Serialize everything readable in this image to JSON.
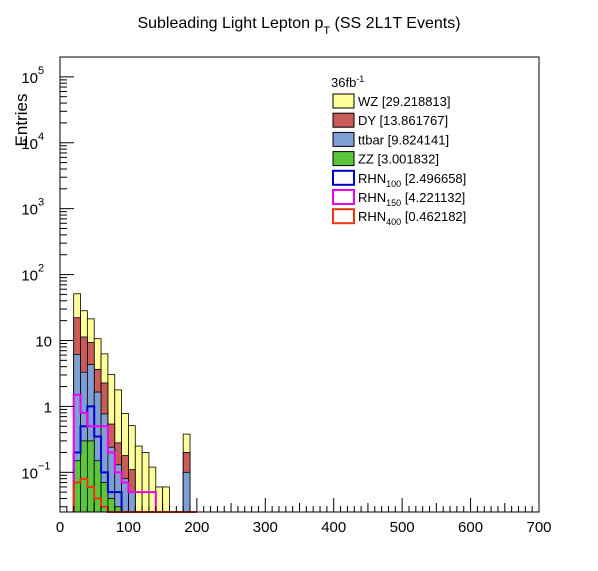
{
  "chart_data": {
    "type": "histogram-stack",
    "title": "Subleading Light Lepton p",
    "title_subscript": "T",
    "title_suffix": " (SS 2L1T Events)",
    "ylabel": "Entries",
    "xlabel": "",
    "xlim": [
      0,
      700
    ],
    "ylim": [
      0.025,
      200000
    ],
    "yscale": "log",
    "x_ticks": [
      0,
      100,
      200,
      300,
      400,
      500,
      600,
      700
    ],
    "x_tick_labels": [
      "0",
      "100",
      "200",
      "300",
      "400",
      "500",
      "600",
      "700"
    ],
    "y_tick_labels": [
      {
        "value": 0.1,
        "base": "10",
        "exp": "−1"
      },
      {
        "value": 1,
        "base": "1",
        "exp": ""
      },
      {
        "value": 10,
        "base": "10",
        "exp": ""
      },
      {
        "value": 100,
        "base": "10",
        "exp": "2"
      },
      {
        "value": 1000,
        "base": "10",
        "exp": "3"
      },
      {
        "value": 10000,
        "base": "10",
        "exp": "4"
      },
      {
        "value": 100000,
        "base": "10",
        "exp": "5"
      }
    ],
    "luminosity_label": "36fb",
    "luminosity_exp": "-1",
    "legend_position": "top-right",
    "bin_edges": [
      20,
      30,
      40,
      50,
      60,
      70,
      80,
      90,
      100,
      110,
      120,
      130,
      140,
      150,
      160,
      170,
      180,
      190,
      200
    ],
    "stacked_series": [
      {
        "name": "ZZ",
        "label_main": "ZZ",
        "label_sub": "",
        "label_value": " [3.001832]",
        "color": "#5cc63a",
        "values": [
          0.15,
          0.3,
          0.3,
          0.15,
          0.07,
          0.04,
          0.03,
          0,
          0,
          0,
          0,
          0,
          0,
          0,
          0,
          0,
          0,
          0
        ]
      },
      {
        "name": "ttbar",
        "label_main": "ttbar",
        "label_sub": "",
        "label_value": " [9.824141]",
        "color": "#7f9fd4",
        "values": [
          6,
          3,
          4,
          1.5,
          0.7,
          0.2,
          0.1,
          0.08,
          0.05,
          0,
          0,
          0,
          0,
          0,
          0,
          0,
          0.1,
          0
        ]
      },
      {
        "name": "DY",
        "label_main": "DY",
        "label_sub": "",
        "label_value": " [13.861767]",
        "color": "#c95b5b",
        "values": [
          16,
          8,
          5,
          2,
          1.5,
          0.3,
          0.15,
          0.1,
          0.06,
          0,
          0,
          0,
          0,
          0,
          0,
          0,
          0.1,
          0
        ]
      },
      {
        "name": "WZ",
        "label_main": "WZ",
        "label_sub": "",
        "label_value": " [29.218813]",
        "color": "#ffff99",
        "values": [
          29,
          17,
          12,
          7,
          4,
          2.5,
          1.5,
          0.6,
          0.4,
          0.25,
          0.2,
          0.12,
          0.06,
          0.06,
          0,
          0,
          0.18,
          0
        ]
      }
    ],
    "line_series": [
      {
        "name": "RHN100",
        "label_main": "RHN",
        "label_sub": "100",
        "label_value": " [2.496658]",
        "color": "#0000cc",
        "values": [
          0.2,
          0.5,
          1,
          0.35,
          0.1,
          0.05,
          0.05,
          0,
          0,
          0,
          0,
          0,
          0,
          0,
          0,
          0,
          0,
          0
        ]
      },
      {
        "name": "RHN150",
        "label_main": "RHN",
        "label_sub": "150",
        "label_value": " [4.221132]",
        "color": "#ee00ee",
        "values": [
          1.5,
          0.8,
          0.5,
          0.5,
          0.5,
          0.2,
          0.1,
          0.07,
          0.05,
          0.05,
          0.05,
          0.05,
          0,
          0,
          0,
          0,
          0,
          0
        ]
      },
      {
        "name": "RHN400",
        "label_main": "RHN",
        "label_sub": "400",
        "label_value": " [0.462182]",
        "color": "#ee3311",
        "values": [
          0.07,
          0.08,
          0.06,
          0.04,
          0.03,
          0,
          0,
          0,
          0,
          0,
          0,
          0,
          0,
          0,
          0,
          0,
          0,
          0
        ]
      }
    ]
  }
}
